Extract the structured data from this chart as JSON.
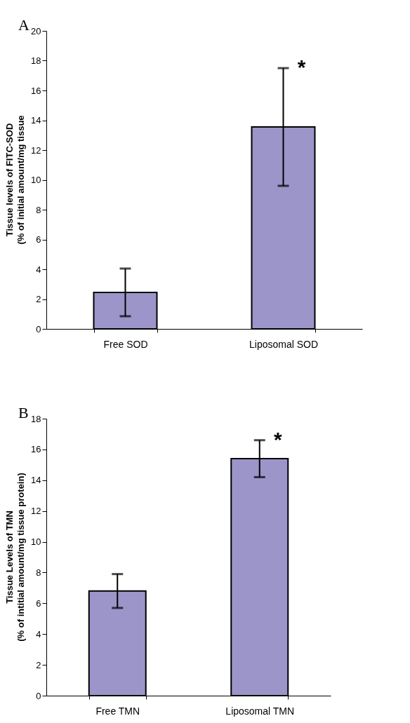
{
  "chart_data": [
    {
      "type": "bar",
      "title": "A",
      "categories": [
        "Free SOD",
        "Liposomal SOD"
      ],
      "values": [
        2.45,
        13.55
      ],
      "errors": [
        1.6,
        3.95
      ],
      "color": "#9b95c9",
      "ylabel": "Tissue levels of FITC-SOD\n(% of initial amount/mg tissue",
      "ylim": [
        0,
        20
      ],
      "yticks": [
        0,
        2,
        4,
        6,
        8,
        10,
        12,
        14,
        16,
        18,
        20
      ],
      "annotations": [
        {
          "text": "*",
          "x": "Liposomal SOD",
          "y": 17.5
        }
      ]
    },
    {
      "type": "bar",
      "title": "B",
      "categories": [
        "Free TMN",
        "Liposomal TMN"
      ],
      "values": [
        6.8,
        15.4
      ],
      "errors": [
        1.1,
        1.2
      ],
      "color": "#9b95c9",
      "ylabel": "Tissue Levels of TMN\n(% of intitial amount/mg tissue protein)",
      "ylim": [
        0,
        18
      ],
      "yticks": [
        0,
        2,
        4,
        6,
        8,
        10,
        12,
        14,
        16,
        18
      ],
      "annotations": [
        {
          "text": "*",
          "x": "Liposomal TMN",
          "y": 16.6
        }
      ]
    }
  ]
}
